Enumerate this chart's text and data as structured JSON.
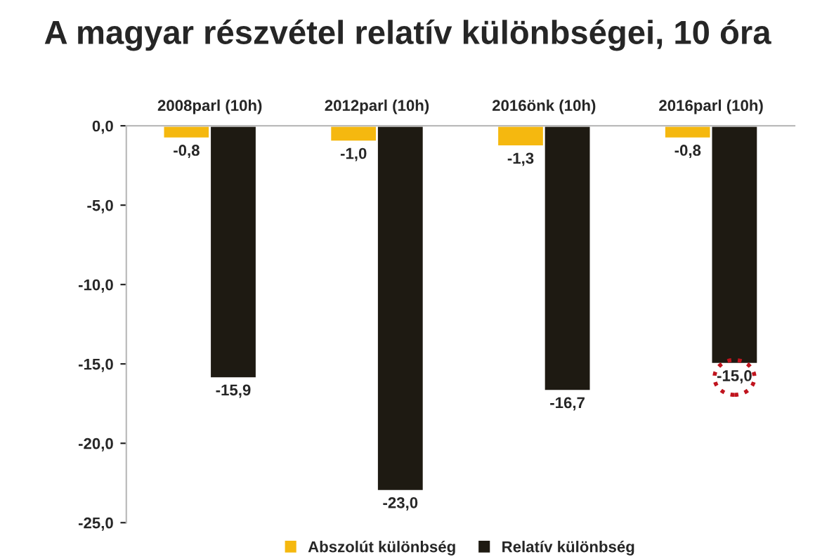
{
  "chart_data": {
    "type": "bar",
    "title": "A magyar részvétel relatív különbségei, 10 óra",
    "categories": [
      "2008parl (10h)",
      "2012parl (10h)",
      "2016önk (10h)",
      "2016parl (10h)"
    ],
    "series": [
      {
        "name": "Abszolút különbség",
        "color": "#f5b80f",
        "values": [
          -0.8,
          -1.0,
          -1.3,
          -0.8
        ],
        "value_labels": [
          "-0,8",
          "-1,0",
          "-1,3",
          "-0,8"
        ]
      },
      {
        "name": "Relatív különbség",
        "color": "#1e1a12",
        "values": [
          -15.9,
          -23.0,
          -16.7,
          -15.0
        ],
        "value_labels": [
          "-15,9",
          "-23,0",
          "-16,7",
          "-15,0"
        ]
      }
    ],
    "ylim": [
      -25,
      0
    ],
    "yticks": [
      {
        "value": -25,
        "label": "-25,0"
      },
      {
        "value": -20,
        "label": "-20,0"
      },
      {
        "value": -15,
        "label": "-15,0"
      },
      {
        "value": -10,
        "label": "-10,0"
      },
      {
        "value": -5,
        "label": "-5,0"
      },
      {
        "value": 0,
        "label": "0,0"
      }
    ],
    "grid": false,
    "legend": "bottom"
  }
}
